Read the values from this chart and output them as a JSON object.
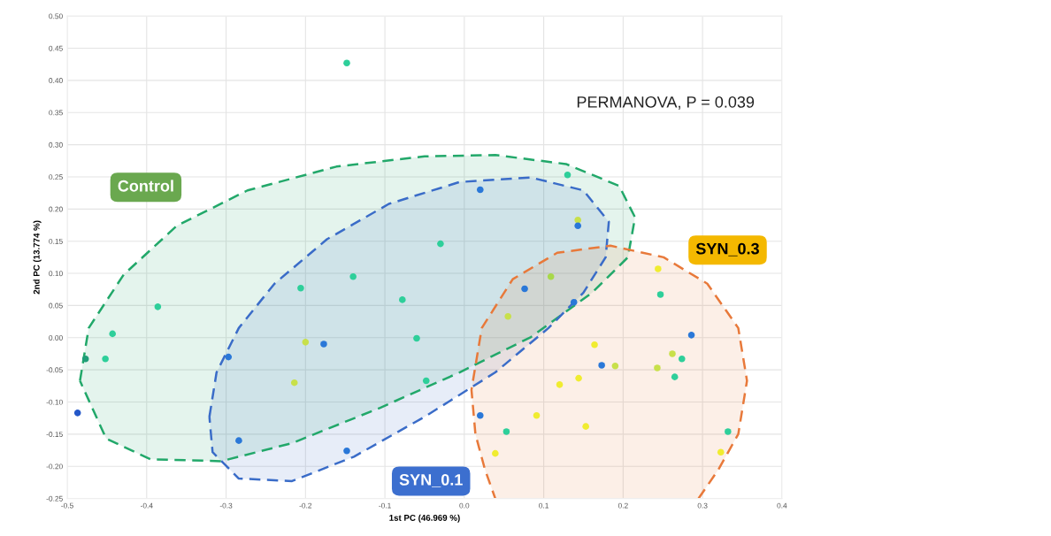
{
  "chart_data": {
    "type": "scatter",
    "xlabel": "1st PC (46.969 %)",
    "ylabel": "2nd PC (13.774 %)",
    "xlim": [
      -0.5,
      0.4
    ],
    "ylim": [
      -0.25,
      0.5
    ],
    "xticks": [
      -0.5,
      -0.4,
      -0.3,
      -0.2,
      -0.1,
      {
        "value": 0,
        "label": "0.0"
      },
      0.1,
      0.2,
      0.3,
      0.4
    ],
    "yticks": [
      {
        "value": -0.25,
        "label": "-0.25"
      },
      {
        "value": -0.2,
        "label": "-0.20"
      },
      {
        "value": -0.15,
        "label": "-0.15"
      },
      {
        "value": -0.1,
        "label": "-0.10"
      },
      {
        "value": -0.05,
        "label": "-0.05"
      },
      {
        "value": 0,
        "label": "0.00"
      },
      {
        "value": 0.05,
        "label": "0.05"
      },
      {
        "value": 0.1,
        "label": "0.10"
      },
      {
        "value": 0.15,
        "label": "0.15"
      },
      {
        "value": 0.2,
        "label": "0.20"
      },
      {
        "value": 0.25,
        "label": "0.25"
      },
      {
        "value": 0.3,
        "label": "0.30"
      },
      {
        "value": 0.35,
        "label": "0.35"
      },
      {
        "value": 0.4,
        "label": "0.40"
      },
      {
        "value": 0.45,
        "label": "0.45"
      },
      {
        "value": 0.5,
        "label": "0.50"
      }
    ],
    "grid": true,
    "marker": "circle",
    "series": [
      {
        "type": "area",
        "line_style": "dashed",
        "marker": "none",
        "color": "#22a86a",
        "x": [
          -0.484,
          -0.473,
          -0.429,
          -0.362,
          -0.273,
          -0.161,
          -0.05,
          0.039,
          0.128,
          0.195,
          0.215,
          0.206,
          0.161,
          0.084,
          -0.006,
          -0.106,
          -0.217,
          -0.306,
          -0.395,
          -0.451,
          -0.484
        ],
        "values": [
          -0.067,
          0.015,
          0.098,
          0.174,
          0.229,
          0.266,
          0.282,
          0.284,
          0.27,
          0.236,
          0.187,
          0.125,
          0.07,
          0.001,
          -0.054,
          -0.109,
          -0.164,
          -0.192,
          -0.189,
          -0.157,
          -0.067
        ]
      },
      {
        "type": "area",
        "line_style": "dashed",
        "marker": "none",
        "color": "#3a6cc8",
        "x": [
          -0.321,
          -0.312,
          -0.284,
          -0.239,
          -0.173,
          -0.095,
          -0.006,
          0.084,
          0.15,
          0.182,
          0.178,
          0.15,
          0.106,
          0.039,
          -0.05,
          -0.139,
          -0.217,
          -0.284,
          -0.317,
          -0.321
        ],
        "values": [
          -0.123,
          -0.054,
          0.015,
          0.084,
          0.153,
          0.208,
          0.242,
          0.249,
          0.229,
          0.18,
          0.125,
          0.07,
          0.015,
          -0.054,
          -0.123,
          -0.185,
          -0.223,
          -0.219,
          -0.178,
          -0.123
        ]
      },
      {
        "type": "area",
        "line_style": "dashed",
        "marker": "none",
        "color": "#e8793a",
        "x": [
          0.295,
          0.32,
          0.345,
          0.356,
          0.345,
          0.306,
          0.251,
          0.184,
          0.117,
          0.061,
          0.022,
          0.009,
          0.014,
          0.026,
          0.039
        ],
        "values": [
          -0.25,
          -0.205,
          -0.15,
          -0.067,
          0.015,
          0.084,
          0.125,
          0.143,
          0.132,
          0.091,
          0.015,
          -0.081,
          -0.15,
          -0.205,
          -0.25
        ]
      },
      {
        "x": [
          -0.148,
          -0.386,
          -0.443,
          -0.477,
          -0.452,
          -0.487,
          -0.297,
          -0.284,
          -0.206,
          -0.2,
          -0.177,
          -0.214,
          -0.14,
          -0.148,
          -0.078,
          -0.06,
          -0.048,
          -0.03,
          0.13,
          0.02,
          0.143,
          0.143,
          0.109,
          0.076,
          0.138,
          0.055,
          0.244,
          0.247,
          0.286,
          0.164,
          0.173,
          0.19,
          0.262,
          0.274,
          0.243,
          0.265,
          0.144,
          0.12,
          0.091,
          0.02,
          0.053,
          0.153,
          0.332,
          0.039,
          0.323
        ],
        "values": [
          0.427,
          0.048,
          0.006,
          -0.033,
          -0.033,
          -0.117,
          -0.03,
          -0.16,
          0.077,
          -0.007,
          -0.01,
          -0.07,
          0.095,
          -0.176,
          0.059,
          -0.001,
          -0.067,
          0.146,
          0.253,
          0.23,
          0.183,
          0.174,
          0.095,
          0.076,
          0.055,
          0.033,
          0.107,
          0.067,
          0.004,
          -0.011,
          -0.043,
          -0.044,
          -0.025,
          -0.033,
          -0.047,
          -0.061,
          -0.063,
          -0.073,
          -0.121,
          -0.121,
          -0.146,
          -0.138,
          -0.146,
          -0.18,
          -0.178
        ],
        "colors": [
          "#2ecf9a",
          "#2ecf9a",
          "#2ecf9a",
          "#1f9e78",
          "#2ecf9a",
          "#2457c8",
          "#2a78d8",
          "#2a78d8",
          "#2ecf9a",
          "#c8e04a",
          "#2a78d8",
          "#c8e04a",
          "#2ecf9a",
          "#2a78d8",
          "#2ecf9a",
          "#2ecf9a",
          "#2ecf9a",
          "#2ecf9a",
          "#2ecf9a",
          "#2a78d8",
          "#c8e04a",
          "#2a78d8",
          "#a8d84a",
          "#2a78d8",
          "#2a78d8",
          "#c8e04a",
          "#f0ec30",
          "#2ecf9a",
          "#2a78d8",
          "#f0ec30",
          "#2a78d8",
          "#c8e04a",
          "#c8e04a",
          "#2ecf9a",
          "#c8e04a",
          "#2ecf9a",
          "#f0ec30",
          "#f0ec30",
          "#f0ec30",
          "#2a78d8",
          "#2ecf9a",
          "#f0ec30",
          "#2ecf9a",
          "#f0ec30",
          "#f0ec30"
        ]
      }
    ],
    "annotations": [
      "Control",
      "SYN_0.1",
      "SYN_0.3",
      "PERMANOVA, P = 0.039"
    ]
  }
}
